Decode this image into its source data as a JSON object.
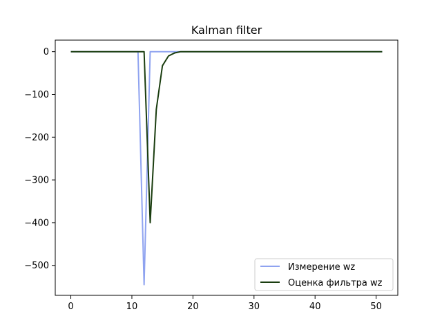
{
  "chart_data": {
    "type": "line",
    "title": "Kalman filter",
    "xlabel": "",
    "ylabel": "",
    "xlim": [
      -2.55,
      53.55
    ],
    "ylim": [
      -570,
      27
    ],
    "xticks": [
      0,
      10,
      20,
      30,
      40,
      50
    ],
    "xtick_labels": [
      "0",
      "10",
      "20",
      "30",
      "40",
      "50"
    ],
    "yticks": [
      0,
      -100,
      -200,
      -300,
      -400,
      -500
    ],
    "ytick_labels": [
      "0",
      "−100",
      "−200",
      "−300",
      "−400",
      "−500"
    ],
    "grid": false,
    "legend_position": "lower-right",
    "series": [
      {
        "name": "Измерение wz",
        "color": "#8fa3f0",
        "x": [
          0,
          1,
          2,
          3,
          4,
          5,
          6,
          7,
          8,
          9,
          10,
          11,
          12,
          13,
          14,
          15,
          16,
          17,
          18,
          19,
          20,
          21,
          22,
          23,
          24,
          25,
          26,
          27,
          28,
          29,
          30,
          31,
          32,
          33,
          34,
          35,
          36,
          37,
          38,
          39,
          40,
          41,
          42,
          43,
          44,
          45,
          46,
          47,
          48,
          49,
          50,
          51
        ],
        "y": [
          0,
          0,
          0,
          0,
          0,
          0,
          0,
          0,
          0,
          0,
          0,
          0,
          -545,
          0,
          0,
          0,
          0,
          0,
          0,
          0,
          0,
          0,
          0,
          0,
          0,
          0,
          0,
          0,
          0,
          0,
          0,
          0,
          0,
          0,
          0,
          0,
          0,
          0,
          0,
          0,
          0,
          0,
          0,
          0,
          0,
          0,
          0,
          0,
          0,
          0,
          0,
          0
        ]
      },
      {
        "name": "Оценка фильтра wz",
        "color": "#1a3d0f",
        "x": [
          0,
          1,
          2,
          3,
          4,
          5,
          6,
          7,
          8,
          9,
          10,
          11,
          12,
          13,
          14,
          15,
          16,
          17,
          18,
          19,
          20,
          21,
          22,
          23,
          24,
          25,
          26,
          27,
          28,
          29,
          30,
          31,
          32,
          33,
          34,
          35,
          36,
          37,
          38,
          39,
          40,
          41,
          42,
          43,
          44,
          45,
          46,
          47,
          48,
          49,
          50,
          51
        ],
        "y": [
          0,
          0,
          0,
          0,
          0,
          0,
          0,
          0,
          0,
          0,
          0,
          0,
          0,
          -400,
          -135,
          -33,
          -10,
          -3,
          0,
          0,
          0,
          0,
          0,
          0,
          0,
          0,
          0,
          0,
          0,
          0,
          0,
          0,
          0,
          0,
          0,
          0,
          0,
          0,
          0,
          0,
          0,
          0,
          0,
          0,
          0,
          0,
          0,
          0,
          0,
          0,
          0,
          0
        ]
      }
    ]
  }
}
